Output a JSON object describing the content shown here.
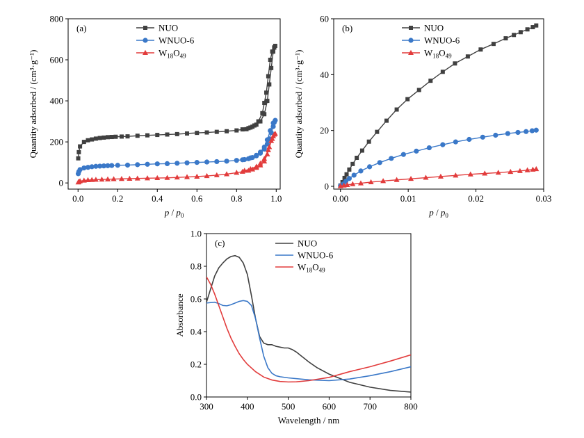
{
  "chart_data": [
    {
      "panel_label": "(a)",
      "type": "line",
      "xlabel": "p / p0",
      "xlabel_parts": {
        "p": "p",
        "slash": " / ",
        "p0_base": "p",
        "p0_sub": "0"
      },
      "ylabel": "Quantity adsorbed / (cm³·g⁻¹)",
      "xlim": [
        -0.05,
        1.02
      ],
      "ylim": [
        -30,
        800
      ],
      "xticks": [
        "0.0",
        "0.2",
        "0.4",
        "0.6",
        "0.8",
        "1.0"
      ],
      "xtick_values": [
        0.0,
        0.2,
        0.4,
        0.6,
        0.8,
        1.0
      ],
      "yticks": [
        "0",
        "200",
        "400",
        "600",
        "800"
      ],
      "ytick_values": [
        0,
        200,
        400,
        600,
        800
      ],
      "legend_position": "top-center",
      "series": [
        {
          "name": "NUO",
          "color": "#404040",
          "marker": "square",
          "x": [
            0.001,
            0.004,
            0.01,
            0.03,
            0.05,
            0.07,
            0.09,
            0.11,
            0.13,
            0.15,
            0.17,
            0.19,
            0.22,
            0.25,
            0.3,
            0.35,
            0.4,
            0.45,
            0.5,
            0.55,
            0.6,
            0.65,
            0.7,
            0.75,
            0.8,
            0.83,
            0.86,
            0.88,
            0.9,
            0.92,
            0.94,
            0.955,
            0.965,
            0.975,
            0.985,
            0.99,
            0.995,
            0.99,
            0.98,
            0.97,
            0.96,
            0.95,
            0.94,
            0.93,
            0.91,
            0.89,
            0.87,
            0.85
          ],
          "y": [
            120,
            150,
            178,
            200,
            208,
            212,
            216,
            219,
            221,
            223,
            224,
            225,
            226,
            227,
            230,
            232,
            234,
            236,
            238,
            241,
            244,
            246,
            249,
            252,
            256,
            261,
            267,
            274,
            284,
            300,
            335,
            400,
            480,
            560,
            640,
            660,
            668,
            660,
            640,
            600,
            520,
            440,
            390,
            340,
            300,
            280,
            270,
            262
          ]
        },
        {
          "name": "WNUO-6",
          "color": "#3a78c8",
          "marker": "circle",
          "x": [
            0.001,
            0.004,
            0.01,
            0.03,
            0.05,
            0.07,
            0.09,
            0.11,
            0.13,
            0.15,
            0.17,
            0.2,
            0.25,
            0.3,
            0.35,
            0.4,
            0.45,
            0.5,
            0.55,
            0.6,
            0.65,
            0.7,
            0.75,
            0.8,
            0.83,
            0.86,
            0.88,
            0.9,
            0.92,
            0.94,
            0.955,
            0.965,
            0.975,
            0.985,
            0.99,
            0.995,
            0.985,
            0.97,
            0.955,
            0.94,
            0.92,
            0.9,
            0.87,
            0.84
          ],
          "y": [
            45,
            55,
            65,
            73,
            76,
            79,
            81,
            82,
            83,
            84,
            85,
            86,
            87,
            89,
            91,
            93,
            94,
            96,
            98,
            100,
            102,
            104,
            106,
            110,
            113,
            118,
            124,
            132,
            145,
            165,
            190,
            215,
            245,
            275,
            295,
            305,
            292,
            255,
            210,
            175,
            150,
            135,
            122,
            114
          ]
        },
        {
          "name": "W18O49",
          "color": "#e23c3c",
          "marker": "triangle",
          "x": [
            0.001,
            0.004,
            0.01,
            0.03,
            0.05,
            0.07,
            0.09,
            0.12,
            0.15,
            0.18,
            0.22,
            0.26,
            0.3,
            0.35,
            0.4,
            0.45,
            0.5,
            0.55,
            0.6,
            0.65,
            0.7,
            0.75,
            0.8,
            0.83,
            0.86,
            0.88,
            0.9,
            0.92,
            0.94,
            0.955,
            0.965,
            0.975,
            0.985,
            0.99,
            0.995,
            0.98,
            0.96,
            0.94,
            0.92,
            0.9,
            0.87,
            0.84
          ],
          "y": [
            3,
            6,
            9,
            12,
            14,
            15,
            16,
            17,
            18,
            19,
            20,
            21,
            22,
            23,
            24,
            25,
            27,
            29,
            31,
            34,
            38,
            43,
            50,
            55,
            60,
            66,
            74,
            86,
            105,
            140,
            175,
            205,
            228,
            236,
            240,
            215,
            160,
            118,
            95,
            80,
            68,
            60
          ]
        }
      ]
    },
    {
      "panel_label": "(b)",
      "type": "line",
      "xlabel": "p / p0",
      "xlabel_parts": {
        "p": "p",
        "slash": " / ",
        "p0_base": "p",
        "p0_sub": "0"
      },
      "ylabel": "Quantity adsorbed / (cm³·g⁻¹)",
      "xlim": [
        -0.001,
        0.03
      ],
      "ylim": [
        -1,
        60
      ],
      "xticks": [
        "0.00",
        "0.01",
        "0.02",
        "0.03"
      ],
      "xtick_values": [
        0.0,
        0.01,
        0.02,
        0.03
      ],
      "yticks": [
        "0",
        "20",
        "40",
        "60"
      ],
      "ytick_values": [
        0,
        20,
        40,
        60
      ],
      "legend_position": "top-center",
      "series": [
        {
          "name": "NUO",
          "color": "#404040",
          "marker": "square",
          "x": [
            0.0,
            0.0003,
            0.0006,
            0.0009,
            0.0013,
            0.0018,
            0.0024,
            0.0032,
            0.0042,
            0.0054,
            0.0068,
            0.0083,
            0.0099,
            0.0116,
            0.0133,
            0.0151,
            0.0169,
            0.0188,
            0.0207,
            0.0226,
            0.0244,
            0.0256,
            0.0266,
            0.0276,
            0.0284,
            0.0289
          ],
          "y": [
            0.3,
            1.5,
            3.0,
            4.3,
            6.0,
            8.0,
            10.2,
            12.8,
            16.0,
            19.5,
            23.5,
            27.5,
            31.2,
            34.5,
            37.8,
            41.0,
            44.0,
            46.5,
            49.0,
            51.0,
            53.0,
            54.2,
            55.2,
            56.2,
            57.0,
            57.6
          ]
        },
        {
          "name": "WNUO-6",
          "color": "#3a78c8",
          "marker": "circle",
          "x": [
            0.0,
            0.0004,
            0.0008,
            0.0013,
            0.002,
            0.003,
            0.0043,
            0.0058,
            0.0075,
            0.0093,
            0.0112,
            0.0131,
            0.0151,
            0.017,
            0.019,
            0.021,
            0.0229,
            0.0247,
            0.0262,
            0.0274,
            0.0283,
            0.0289
          ],
          "y": [
            0.2,
            0.8,
            1.8,
            2.8,
            4.0,
            5.5,
            7.0,
            8.5,
            10.0,
            11.4,
            12.6,
            13.8,
            14.9,
            15.9,
            16.8,
            17.6,
            18.3,
            18.9,
            19.3,
            19.6,
            19.9,
            20.1
          ]
        },
        {
          "name": "W18O49",
          "color": "#e23c3c",
          "marker": "triangle",
          "x": [
            0.0,
            0.0005,
            0.001,
            0.0018,
            0.003,
            0.0045,
            0.0063,
            0.0083,
            0.0104,
            0.0126,
            0.0148,
            0.017,
            0.0192,
            0.0213,
            0.0233,
            0.0251,
            0.0265,
            0.0276,
            0.0284,
            0.0289
          ],
          "y": [
            0.1,
            0.3,
            0.5,
            0.8,
            1.1,
            1.5,
            1.9,
            2.3,
            2.7,
            3.1,
            3.5,
            3.9,
            4.3,
            4.6,
            4.9,
            5.2,
            5.5,
            5.8,
            6.0,
            6.2
          ]
        }
      ]
    },
    {
      "panel_label": "(c)",
      "type": "line",
      "xlabel": "Wavelength / nm",
      "ylabel": "Absorbance",
      "xlim": [
        300,
        800
      ],
      "ylim": [
        0.0,
        1.0
      ],
      "xticks": [
        "300",
        "400",
        "500",
        "600",
        "700",
        "800"
      ],
      "xtick_values": [
        300,
        400,
        500,
        600,
        700,
        800
      ],
      "yticks": [
        "0.0",
        "0.2",
        "0.4",
        "0.6",
        "0.8",
        "1.0"
      ],
      "ytick_values": [
        0.0,
        0.2,
        0.4,
        0.6,
        0.8,
        1.0
      ],
      "legend_position": "top-center",
      "series": [
        {
          "name": "NUO",
          "color": "#404040",
          "x": [
            300,
            310,
            320,
            330,
            340,
            350,
            360,
            370,
            380,
            390,
            400,
            410,
            420,
            430,
            440,
            450,
            460,
            470,
            480,
            490,
            500,
            510,
            520,
            530,
            540,
            550,
            570,
            600,
            650,
            700,
            750,
            800
          ],
          "y": [
            0.58,
            0.66,
            0.74,
            0.79,
            0.82,
            0.845,
            0.86,
            0.865,
            0.855,
            0.82,
            0.75,
            0.62,
            0.48,
            0.37,
            0.33,
            0.32,
            0.32,
            0.31,
            0.305,
            0.3,
            0.3,
            0.29,
            0.275,
            0.255,
            0.235,
            0.215,
            0.18,
            0.14,
            0.09,
            0.06,
            0.04,
            0.03
          ]
        },
        {
          "name": "WNUO-6",
          "color": "#3a78c8",
          "x": [
            300,
            310,
            320,
            330,
            340,
            350,
            360,
            370,
            380,
            390,
            400,
            410,
            420,
            430,
            440,
            450,
            460,
            470,
            480,
            500,
            550,
            600,
            650,
            700,
            750,
            800
          ],
          "y": [
            0.575,
            0.578,
            0.58,
            0.572,
            0.56,
            0.558,
            0.565,
            0.575,
            0.585,
            0.59,
            0.585,
            0.56,
            0.48,
            0.36,
            0.25,
            0.18,
            0.145,
            0.13,
            0.124,
            0.117,
            0.105,
            0.1,
            0.11,
            0.13,
            0.155,
            0.185
          ]
        },
        {
          "name": "W18O49",
          "color": "#e23c3c",
          "x": [
            300,
            310,
            320,
            330,
            340,
            350,
            360,
            370,
            380,
            390,
            400,
            420,
            440,
            460,
            480,
            500,
            520,
            550,
            600,
            650,
            700,
            750,
            800
          ],
          "y": [
            0.735,
            0.69,
            0.63,
            0.56,
            0.49,
            0.42,
            0.36,
            0.31,
            0.265,
            0.23,
            0.2,
            0.155,
            0.122,
            0.104,
            0.095,
            0.092,
            0.093,
            0.1,
            0.12,
            0.155,
            0.185,
            0.22,
            0.258
          ]
        }
      ]
    }
  ]
}
